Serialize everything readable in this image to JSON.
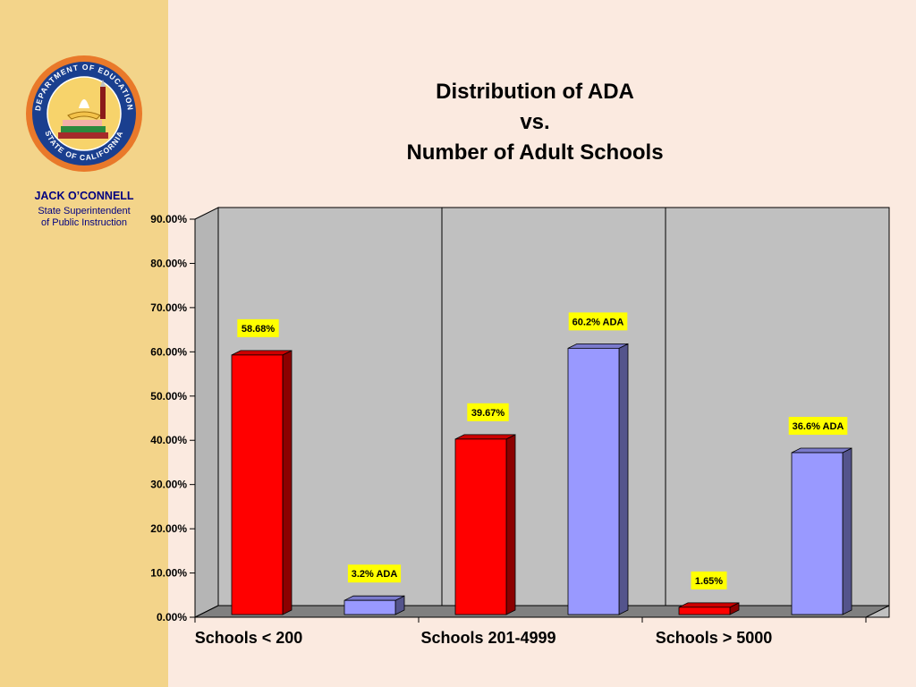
{
  "sidebar": {
    "owner_name": "JACK O’CONNELL",
    "owner_title": "State Superintendent\nof Public Instruction",
    "seal_text_top": "DEPARTMENT OF EDUCATION",
    "seal_text_bottom": "STATE OF CALIFORNIA"
  },
  "title_lines": [
    "Distribution of ADA",
    "vs.",
    "Number of Adult Schools"
  ],
  "colors": {
    "sidebar": "#f3d48a",
    "background": "#fbeae0",
    "plot_wall": "#c0c0c0",
    "red_series": "#ff0000",
    "blue_series": "#9999ff",
    "data_label_bg": "#ffff00",
    "owner_text": "#000080"
  },
  "chart_data": {
    "type": "bar",
    "style": "3d-column",
    "title": "Distribution of ADA vs. Number of Adult Schools",
    "categories": [
      "Schools < 200",
      "Schools 201-4999",
      "Schools > 5000"
    ],
    "series": [
      {
        "values": [
          58.68,
          39.67,
          1.65
        ],
        "labels": [
          "58.68%",
          "39.67%",
          "1.65%"
        ],
        "color": "#ff0000"
      },
      {
        "values": [
          3.2,
          60.2,
          36.6
        ],
        "labels": [
          "3.2% ADA",
          "60.2% ADA",
          "36.6% ADA"
        ],
        "color": "#9999ff"
      }
    ],
    "yticks": [
      "0.00%",
      "10.00%",
      "20.00%",
      "30.00%",
      "40.00%",
      "50.00%",
      "60.00%",
      "70.00%",
      "80.00%",
      "90.00%"
    ],
    "ylim": [
      0,
      90
    ],
    "grid": false,
    "legend": "none"
  }
}
